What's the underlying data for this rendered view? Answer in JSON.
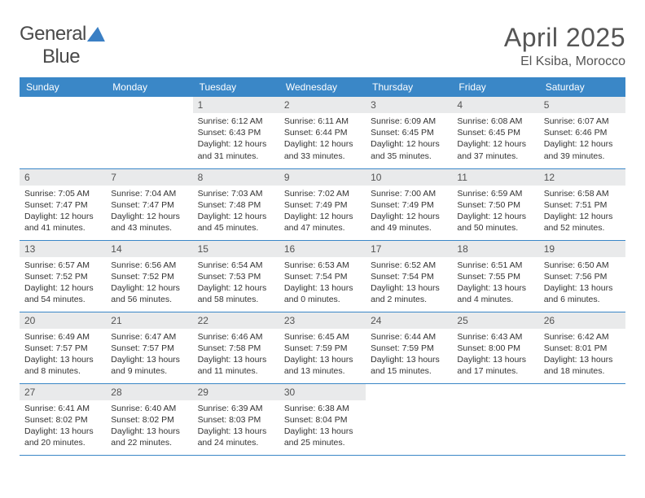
{
  "logo": {
    "part1": "General",
    "part2": "Blue"
  },
  "title": {
    "month": "April 2025",
    "location": "El Ksiba, Morocco"
  },
  "colors": {
    "header_bg": "#3a87c7",
    "header_text": "#ffffff",
    "daynum_bg": "#e9eaeb",
    "daynum_text": "#545454",
    "body_text": "#333333",
    "rule": "#3a87c7",
    "logo_text": "#4a4a4a",
    "logo_mark": "#3a7fc4"
  },
  "dow": [
    "Sunday",
    "Monday",
    "Tuesday",
    "Wednesday",
    "Thursday",
    "Friday",
    "Saturday"
  ],
  "weeks": [
    [
      null,
      null,
      {
        "num": "1",
        "sr": "Sunrise: 6:12 AM",
        "ss": "Sunset: 6:43 PM",
        "d1": "Daylight: 12 hours",
        "d2": "and 31 minutes."
      },
      {
        "num": "2",
        "sr": "Sunrise: 6:11 AM",
        "ss": "Sunset: 6:44 PM",
        "d1": "Daylight: 12 hours",
        "d2": "and 33 minutes."
      },
      {
        "num": "3",
        "sr": "Sunrise: 6:09 AM",
        "ss": "Sunset: 6:45 PM",
        "d1": "Daylight: 12 hours",
        "d2": "and 35 minutes."
      },
      {
        "num": "4",
        "sr": "Sunrise: 6:08 AM",
        "ss": "Sunset: 6:45 PM",
        "d1": "Daylight: 12 hours",
        "d2": "and 37 minutes."
      },
      {
        "num": "5",
        "sr": "Sunrise: 6:07 AM",
        "ss": "Sunset: 6:46 PM",
        "d1": "Daylight: 12 hours",
        "d2": "and 39 minutes."
      }
    ],
    [
      {
        "num": "6",
        "sr": "Sunrise: 7:05 AM",
        "ss": "Sunset: 7:47 PM",
        "d1": "Daylight: 12 hours",
        "d2": "and 41 minutes."
      },
      {
        "num": "7",
        "sr": "Sunrise: 7:04 AM",
        "ss": "Sunset: 7:47 PM",
        "d1": "Daylight: 12 hours",
        "d2": "and 43 minutes."
      },
      {
        "num": "8",
        "sr": "Sunrise: 7:03 AM",
        "ss": "Sunset: 7:48 PM",
        "d1": "Daylight: 12 hours",
        "d2": "and 45 minutes."
      },
      {
        "num": "9",
        "sr": "Sunrise: 7:02 AM",
        "ss": "Sunset: 7:49 PM",
        "d1": "Daylight: 12 hours",
        "d2": "and 47 minutes."
      },
      {
        "num": "10",
        "sr": "Sunrise: 7:00 AM",
        "ss": "Sunset: 7:49 PM",
        "d1": "Daylight: 12 hours",
        "d2": "and 49 minutes."
      },
      {
        "num": "11",
        "sr": "Sunrise: 6:59 AM",
        "ss": "Sunset: 7:50 PM",
        "d1": "Daylight: 12 hours",
        "d2": "and 50 minutes."
      },
      {
        "num": "12",
        "sr": "Sunrise: 6:58 AM",
        "ss": "Sunset: 7:51 PM",
        "d1": "Daylight: 12 hours",
        "d2": "and 52 minutes."
      }
    ],
    [
      {
        "num": "13",
        "sr": "Sunrise: 6:57 AM",
        "ss": "Sunset: 7:52 PM",
        "d1": "Daylight: 12 hours",
        "d2": "and 54 minutes."
      },
      {
        "num": "14",
        "sr": "Sunrise: 6:56 AM",
        "ss": "Sunset: 7:52 PM",
        "d1": "Daylight: 12 hours",
        "d2": "and 56 minutes."
      },
      {
        "num": "15",
        "sr": "Sunrise: 6:54 AM",
        "ss": "Sunset: 7:53 PM",
        "d1": "Daylight: 12 hours",
        "d2": "and 58 minutes."
      },
      {
        "num": "16",
        "sr": "Sunrise: 6:53 AM",
        "ss": "Sunset: 7:54 PM",
        "d1": "Daylight: 13 hours",
        "d2": "and 0 minutes."
      },
      {
        "num": "17",
        "sr": "Sunrise: 6:52 AM",
        "ss": "Sunset: 7:54 PM",
        "d1": "Daylight: 13 hours",
        "d2": "and 2 minutes."
      },
      {
        "num": "18",
        "sr": "Sunrise: 6:51 AM",
        "ss": "Sunset: 7:55 PM",
        "d1": "Daylight: 13 hours",
        "d2": "and 4 minutes."
      },
      {
        "num": "19",
        "sr": "Sunrise: 6:50 AM",
        "ss": "Sunset: 7:56 PM",
        "d1": "Daylight: 13 hours",
        "d2": "and 6 minutes."
      }
    ],
    [
      {
        "num": "20",
        "sr": "Sunrise: 6:49 AM",
        "ss": "Sunset: 7:57 PM",
        "d1": "Daylight: 13 hours",
        "d2": "and 8 minutes."
      },
      {
        "num": "21",
        "sr": "Sunrise: 6:47 AM",
        "ss": "Sunset: 7:57 PM",
        "d1": "Daylight: 13 hours",
        "d2": "and 9 minutes."
      },
      {
        "num": "22",
        "sr": "Sunrise: 6:46 AM",
        "ss": "Sunset: 7:58 PM",
        "d1": "Daylight: 13 hours",
        "d2": "and 11 minutes."
      },
      {
        "num": "23",
        "sr": "Sunrise: 6:45 AM",
        "ss": "Sunset: 7:59 PM",
        "d1": "Daylight: 13 hours",
        "d2": "and 13 minutes."
      },
      {
        "num": "24",
        "sr": "Sunrise: 6:44 AM",
        "ss": "Sunset: 7:59 PM",
        "d1": "Daylight: 13 hours",
        "d2": "and 15 minutes."
      },
      {
        "num": "25",
        "sr": "Sunrise: 6:43 AM",
        "ss": "Sunset: 8:00 PM",
        "d1": "Daylight: 13 hours",
        "d2": "and 17 minutes."
      },
      {
        "num": "26",
        "sr": "Sunrise: 6:42 AM",
        "ss": "Sunset: 8:01 PM",
        "d1": "Daylight: 13 hours",
        "d2": "and 18 minutes."
      }
    ],
    [
      {
        "num": "27",
        "sr": "Sunrise: 6:41 AM",
        "ss": "Sunset: 8:02 PM",
        "d1": "Daylight: 13 hours",
        "d2": "and 20 minutes."
      },
      {
        "num": "28",
        "sr": "Sunrise: 6:40 AM",
        "ss": "Sunset: 8:02 PM",
        "d1": "Daylight: 13 hours",
        "d2": "and 22 minutes."
      },
      {
        "num": "29",
        "sr": "Sunrise: 6:39 AM",
        "ss": "Sunset: 8:03 PM",
        "d1": "Daylight: 13 hours",
        "d2": "and 24 minutes."
      },
      {
        "num": "30",
        "sr": "Sunrise: 6:38 AM",
        "ss": "Sunset: 8:04 PM",
        "d1": "Daylight: 13 hours",
        "d2": "and 25 minutes."
      },
      null,
      null,
      null
    ]
  ]
}
